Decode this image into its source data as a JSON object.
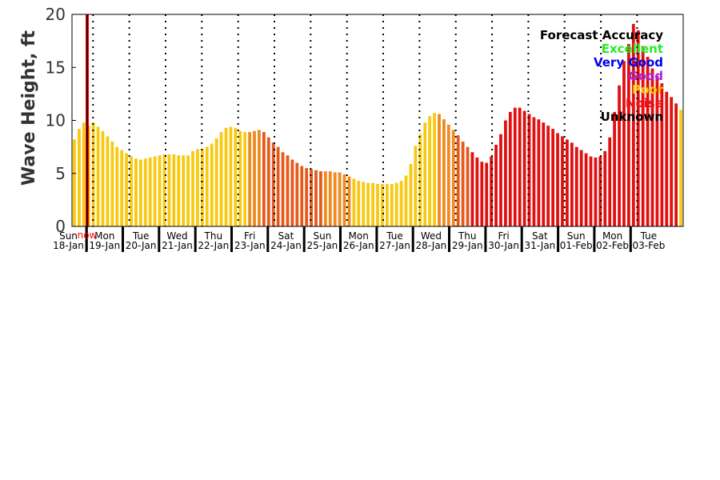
{
  "chart_data": {
    "type": "bar",
    "ylabel": "Wave Height, ft",
    "ylim": [
      0,
      20
    ],
    "yticks": [
      0,
      5,
      10,
      15,
      20
    ],
    "grid": "dotted vertical lines at day boundaries",
    "now_label": "now",
    "now_color": "#ff0000",
    "days": [
      {
        "dow": "Sun",
        "date": "18-Jan"
      },
      {
        "dow": "Mon",
        "date": "19-Jan"
      },
      {
        "dow": "Tue",
        "date": "20-Jan"
      },
      {
        "dow": "Wed",
        "date": "21-Jan"
      },
      {
        "dow": "Thu",
        "date": "22-Jan"
      },
      {
        "dow": "Fri",
        "date": "23-Jan"
      },
      {
        "dow": "Sat",
        "date": "24-Jan"
      },
      {
        "dow": "Sun",
        "date": "25-Jan"
      },
      {
        "dow": "Mon",
        "date": "26-Jan"
      },
      {
        "dow": "Tue",
        "date": "27-Jan"
      },
      {
        "dow": "Wed",
        "date": "28-Jan"
      },
      {
        "dow": "Thu",
        "date": "29-Jan"
      },
      {
        "dow": "Fri",
        "date": "30-Jan"
      },
      {
        "dow": "Sat",
        "date": "31-Jan"
      },
      {
        "dow": "Sun",
        "date": "01-Feb"
      },
      {
        "dow": "Mon",
        "date": "02-Feb"
      },
      {
        "dow": "Tue",
        "date": "03-Feb"
      }
    ],
    "legend": {
      "placement": "top-right",
      "title": "Forecast Accuracy",
      "title_color": "#000000",
      "items": [
        {
          "label": "Excellent",
          "color": "#22ee22"
        },
        {
          "label": "Very Good",
          "color": "#0000ee"
        },
        {
          "label": "Good",
          "color": "#aa22dd"
        },
        {
          "label": "Poor",
          "color": "#ffcc00"
        },
        {
          "label": "Noise",
          "color": "#ee1111"
        },
        {
          "label": "Unknown",
          "color": "#000000"
        }
      ]
    },
    "bar_colors": {
      "poor": "#f7c910",
      "fair": "#ee8a1e",
      "mid": "#e55a1c",
      "noise": "#e11010"
    },
    "values": [
      8.2,
      9.2,
      9.8,
      9.5,
      9.8,
      9.4,
      9.0,
      8.5,
      8.0,
      7.5,
      7.2,
      6.9,
      6.6,
      6.4,
      6.3,
      6.4,
      6.5,
      6.6,
      6.7,
      6.8,
      6.8,
      6.8,
      6.7,
      6.7,
      6.7,
      7.1,
      7.3,
      7.3,
      7.5,
      7.8,
      8.3,
      8.9,
      9.3,
      9.4,
      9.3,
      9.0,
      8.9,
      8.9,
      9.0,
      9.1,
      8.9,
      8.4,
      7.9,
      7.5,
      7.0,
      6.7,
      6.3,
      6.0,
      5.7,
      5.5,
      5.4,
      5.3,
      5.2,
      5.2,
      5.2,
      5.1,
      5.1,
      4.9,
      4.7,
      4.5,
      4.3,
      4.2,
      4.1,
      4.1,
      4.0,
      4.0,
      4.0,
      4.0,
      4.1,
      4.3,
      4.8,
      5.9,
      7.6,
      8.7,
      9.8,
      10.4,
      10.7,
      10.6,
      10.1,
      9.6,
      9.1,
      8.6,
      8.0,
      7.5,
      7.0,
      6.5,
      6.1,
      6.0,
      6.6,
      7.7,
      8.7,
      10.0,
      10.8,
      11.2,
      11.2,
      10.9,
      10.6,
      10.3,
      10.1,
      9.8,
      9.5,
      9.2,
      8.8,
      8.5,
      8.2,
      7.9,
      7.5,
      7.2,
      6.9,
      6.6,
      6.5,
      6.6,
      7.1,
      8.4,
      10.8,
      13.3,
      15.6,
      17.2,
      19.1,
      18.5,
      17.0,
      16.0,
      14.9,
      14.2,
      13.5,
      12.7,
      12.2,
      11.6,
      11.0
    ],
    "colors": [
      "poor",
      "poor",
      "poor",
      "poor",
      "poor",
      "poor",
      "poor",
      "poor",
      "poor",
      "poor",
      "poor",
      "poor",
      "poor",
      "poor",
      "poor",
      "poor",
      "poor",
      "poor",
      "poor",
      "poor",
      "poor",
      "poor",
      "poor",
      "poor",
      "poor",
      "poor",
      "poor",
      "poor",
      "poor",
      "poor",
      "poor",
      "poor",
      "poor",
      "poor",
      "poor",
      "poor",
      "poor",
      "fair",
      "fair",
      "fair",
      "mid",
      "mid",
      "mid",
      "mid",
      "mid",
      "mid",
      "mid",
      "mid",
      "mid",
      "mid",
      "mid",
      "mid",
      "mid",
      "fair",
      "fair",
      "fair",
      "fair",
      "fair",
      "fair",
      "poor",
      "poor",
      "poor",
      "poor",
      "poor",
      "poor",
      "poor",
      "poor",
      "poor",
      "poor",
      "poor",
      "poor",
      "poor",
      "poor",
      "poor",
      "poor",
      "poor",
      "poor",
      "fair",
      "fair",
      "fair",
      "fair",
      "mid",
      "mid",
      "mid",
      "noise",
      "noise",
      "noise",
      "noise",
      "noise",
      "noise",
      "noise",
      "noise",
      "noise",
      "noise",
      "noise",
      "noise",
      "noise",
      "noise",
      "noise",
      "noise",
      "noise",
      "noise",
      "noise",
      "noise",
      "noise",
      "noise",
      "noise",
      "noise",
      "noise",
      "noise",
      "noise",
      "noise",
      "noise",
      "noise",
      "noise",
      "noise",
      "noise",
      "noise",
      "noise",
      "noise",
      "noise",
      "noise",
      "noise",
      "noise",
      "noise",
      "noise",
      "noise",
      "noise"
    ]
  }
}
